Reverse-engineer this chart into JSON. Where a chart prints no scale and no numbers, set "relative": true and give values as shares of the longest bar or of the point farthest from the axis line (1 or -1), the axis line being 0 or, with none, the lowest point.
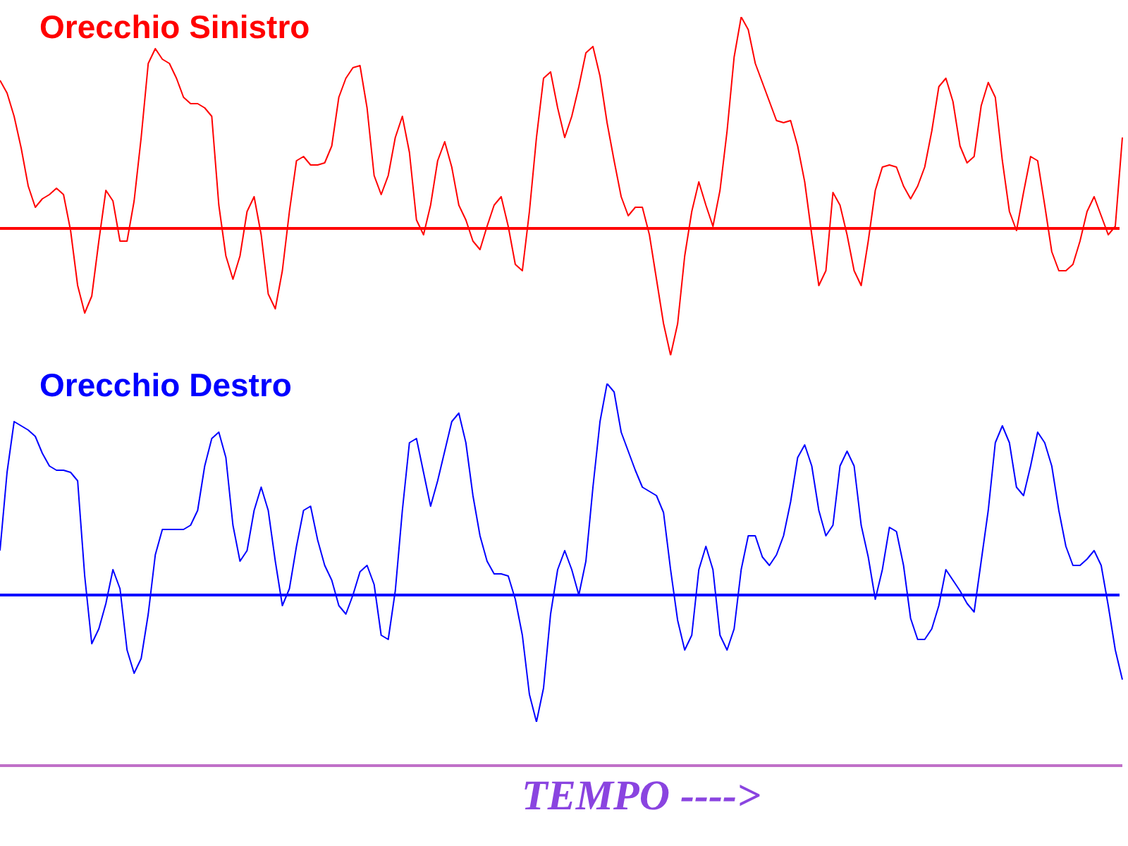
{
  "chart_data": [
    {
      "type": "line",
      "title": "Orecchio Sinistro",
      "relative": true,
      "ref_lines": [
        {
          "axis": "y",
          "value": 0,
          "color": "#ff0000"
        }
      ],
      "legend": false,
      "tick_labels": false,
      "marker": "none",
      "line_style": "solid",
      "categories": [
        null,
        null,
        null,
        null,
        null,
        null,
        null,
        null,
        null,
        null,
        null,
        null,
        null,
        null,
        null,
        null,
        null,
        null,
        null,
        null,
        null,
        null,
        null,
        null,
        null,
        null,
        null,
        null,
        null,
        null,
        null,
        null,
        null,
        null,
        null,
        null,
        null,
        null,
        null,
        null,
        null,
        null,
        null,
        null,
        null,
        null,
        null,
        null,
        null,
        null,
        null,
        null,
        null,
        null,
        null,
        null,
        null,
        null,
        null,
        null,
        null,
        null,
        null,
        null,
        null,
        null,
        null,
        null,
        null,
        null,
        null,
        null,
        null,
        null,
        null,
        null,
        null,
        null,
        null,
        null,
        null,
        null,
        null,
        null,
        null,
        null,
        null,
        null,
        null,
        null,
        null,
        null,
        null,
        null,
        null,
        null,
        null,
        null,
        null,
        null,
        null,
        null,
        null,
        null,
        null,
        null,
        null,
        null,
        null,
        null,
        null,
        null,
        null,
        null,
        null,
        null,
        null,
        null,
        null,
        null,
        null,
        null,
        null,
        null,
        null,
        null,
        null,
        null,
        null,
        null,
        null,
        null,
        null,
        null,
        null,
        null,
        null,
        null,
        null,
        null,
        null,
        null,
        null,
        null,
        null,
        null,
        null,
        null,
        null,
        null,
        null,
        null,
        null,
        null,
        null,
        null,
        null,
        null,
        null,
        null
      ],
      "series": [
        {
          "color": "#ff0000",
          "values": [
            0.7,
            0.64,
            0.53,
            0.38,
            0.2,
            0.1,
            0.14,
            0.16,
            0.19,
            0.16,
            -0.01,
            -0.27,
            -0.4,
            -0.32,
            -0.06,
            0.18,
            0.13,
            -0.06,
            -0.06,
            0.13,
            0.43,
            0.78,
            0.85,
            0.8,
            0.78,
            0.71,
            0.62,
            0.59,
            0.59,
            0.57,
            0.53,
            0.11,
            -0.13,
            -0.24,
            -0.13,
            0.08,
            0.15,
            -0.03,
            -0.31,
            -0.38,
            -0.2,
            0.08,
            0.32,
            0.34,
            0.3,
            0.3,
            0.31,
            0.39,
            0.62,
            0.71,
            0.76,
            0.77,
            0.57,
            0.25,
            0.16,
            0.25,
            0.43,
            0.53,
            0.36,
            0.04,
            -0.03,
            0.11,
            0.32,
            0.41,
            0.29,
            0.11,
            0.04,
            -0.06,
            -0.1,
            0.01,
            0.11,
            0.15,
            0.01,
            -0.17,
            -0.2,
            0.08,
            0.43,
            0.71,
            0.74,
            0.57,
            0.43,
            0.53,
            0.67,
            0.83,
            0.86,
            0.72,
            0.5,
            0.32,
            0.15,
            0.06,
            0.1,
            0.1,
            -0.03,
            -0.24,
            -0.45,
            -0.6,
            -0.45,
            -0.13,
            0.08,
            0.22,
            0.11,
            0.01,
            0.18,
            0.46,
            0.81,
            1,
            0.94,
            0.78,
            0.69,
            0.6,
            0.51,
            0.5,
            0.51,
            0.39,
            0.22,
            -0.03,
            -0.27,
            -0.2,
            0.17,
            0.11,
            -0.03,
            -0.2,
            -0.27,
            -0.06,
            0.18,
            0.29,
            0.3,
            0.29,
            0.2,
            0.14,
            0.2,
            0.29,
            0.46,
            0.67,
            0.71,
            0.6,
            0.39,
            0.31,
            0.34,
            0.58,
            0.69,
            0.62,
            0.32,
            0.08,
            -0.01,
            0.17,
            0.34,
            0.32,
            0.11,
            -0.11,
            -0.2,
            -0.2,
            -0.17,
            -0.06,
            0.08,
            0.15,
            0.06,
            -0.03,
            0.01,
            0.43
          ]
        }
      ]
    },
    {
      "type": "line",
      "title": "Orecchio Destro",
      "xlabel": "TEMPO ---->",
      "relative": true,
      "ref_lines": [
        {
          "axis": "y",
          "value": 0,
          "color": "#0000ff"
        }
      ],
      "legend": false,
      "tick_labels": false,
      "marker": "none",
      "line_style": "solid",
      "categories": [
        null,
        null,
        null,
        null,
        null,
        null,
        null,
        null,
        null,
        null,
        null,
        null,
        null,
        null,
        null,
        null,
        null,
        null,
        null,
        null,
        null,
        null,
        null,
        null,
        null,
        null,
        null,
        null,
        null,
        null,
        null,
        null,
        null,
        null,
        null,
        null,
        null,
        null,
        null,
        null,
        null,
        null,
        null,
        null,
        null,
        null,
        null,
        null,
        null,
        null,
        null,
        null,
        null,
        null,
        null,
        null,
        null,
        null,
        null,
        null,
        null,
        null,
        null,
        null,
        null,
        null,
        null,
        null,
        null,
        null,
        null,
        null,
        null,
        null,
        null,
        null,
        null,
        null,
        null,
        null,
        null,
        null,
        null,
        null,
        null,
        null,
        null,
        null,
        null,
        null,
        null,
        null,
        null,
        null,
        null,
        null,
        null,
        null,
        null,
        null,
        null,
        null,
        null,
        null,
        null,
        null,
        null,
        null,
        null,
        null,
        null,
        null,
        null,
        null,
        null,
        null,
        null,
        null,
        null,
        null,
        null,
        null,
        null,
        null,
        null,
        null,
        null,
        null,
        null,
        null,
        null,
        null,
        null,
        null,
        null,
        null,
        null,
        null,
        null,
        null,
        null,
        null,
        null,
        null,
        null,
        null,
        null,
        null,
        null,
        null,
        null,
        null,
        null,
        null,
        null,
        null,
        null,
        null,
        null,
        null
      ],
      "series": [
        {
          "color": "#0000ff",
          "values": [
            0.21,
            0.58,
            0.82,
            0.8,
            0.78,
            0.75,
            0.67,
            0.61,
            0.59,
            0.59,
            0.58,
            0.54,
            0.09,
            -0.23,
            -0.16,
            -0.04,
            0.12,
            0.03,
            -0.26,
            -0.37,
            -0.3,
            -0.09,
            0.19,
            0.31,
            0.31,
            0.31,
            0.31,
            0.33,
            0.4,
            0.61,
            0.74,
            0.77,
            0.65,
            0.33,
            0.16,
            0.21,
            0.4,
            0.51,
            0.4,
            0.16,
            -0.05,
            0.03,
            0.23,
            0.4,
            0.42,
            0.26,
            0.14,
            0.07,
            -0.05,
            -0.09,
            0.0,
            0.11,
            0.14,
            0.05,
            -0.19,
            -0.21,
            0.02,
            0.4,
            0.72,
            0.74,
            0.58,
            0.42,
            0.54,
            0.68,
            0.82,
            0.86,
            0.72,
            0.47,
            0.28,
            0.16,
            0.1,
            0.1,
            0.09,
            -0.02,
            -0.19,
            -0.47,
            -0.6,
            -0.44,
            -0.09,
            0.12,
            0.21,
            0.12,
            0.0,
            0.16,
            0.51,
            0.82,
            1,
            0.96,
            0.77,
            0.68,
            0.59,
            0.51,
            0.49,
            0.47,
            0.39,
            0.12,
            -0.12,
            -0.26,
            -0.19,
            0.12,
            0.23,
            0.12,
            -0.19,
            -0.26,
            -0.16,
            0.12,
            0.28,
            0.28,
            0.18,
            0.14,
            0.19,
            0.28,
            0.44,
            0.65,
            0.71,
            0.61,
            0.4,
            0.28,
            0.33,
            0.61,
            0.68,
            0.61,
            0.33,
            0.18,
            -0.02,
            0.12,
            0.32,
            0.3,
            0.14,
            -0.11,
            -0.21,
            -0.21,
            -0.16,
            -0.05,
            0.12,
            0.07,
            0.02,
            -0.04,
            -0.08,
            0.16,
            0.4,
            0.72,
            0.8,
            0.72,
            0.51,
            0.47,
            0.61,
            0.77,
            0.72,
            0.61,
            0.4,
            0.23,
            0.14,
            0.14,
            0.17,
            0.21,
            0.14,
            -0.05,
            -0.26,
            -0.4
          ]
        }
      ]
    }
  ]
}
